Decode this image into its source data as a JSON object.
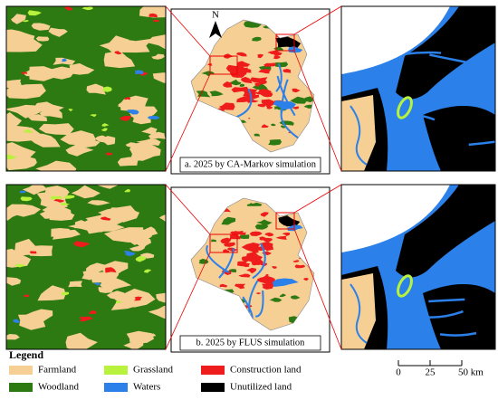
{
  "panels": [
    {
      "caption": "a. 2025 by CA-Markov simulation"
    },
    {
      "caption": "b. 2025 by FLUS simulation"
    }
  ],
  "north": "N",
  "legend": {
    "title": "Legend",
    "items": [
      {
        "label": "Farmland",
        "color": "#f6cf95"
      },
      {
        "label": "Grassland",
        "color": "#b8f23c"
      },
      {
        "label": "Construction land",
        "color": "#ee1c1c"
      },
      {
        "label": "Woodland",
        "color": "#2e7a12"
      },
      {
        "label": "Waters",
        "color": "#2b80ea"
      },
      {
        "label": "Unutilized land",
        "color": "#000000"
      }
    ]
  },
  "scale_bar": {
    "labels": [
      "0",
      "25",
      "50 km"
    ]
  }
}
